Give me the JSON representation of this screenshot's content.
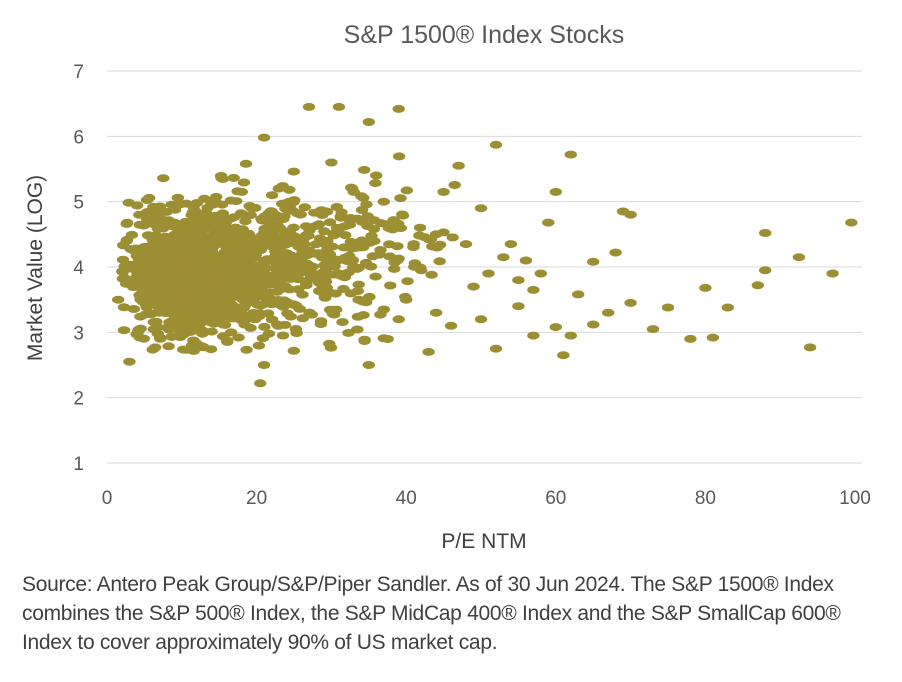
{
  "chart_data": {
    "type": "scatter",
    "title": "S&P 1500® Index Stocks",
    "xlabel": "P/E NTM",
    "ylabel": "Market Value (LOG)",
    "xlim": [
      0,
      100
    ],
    "ylim": [
      1,
      7
    ],
    "xticks": [
      "0",
      "20",
      "40",
      "60",
      "80",
      "100"
    ],
    "yticks": [
      "1",
      "2",
      "3",
      "4",
      "5",
      "6",
      "7"
    ],
    "xtick_values": [
      0,
      20,
      40,
      60,
      80,
      100
    ],
    "ytick_values": [
      1,
      2,
      3,
      4,
      5,
      6,
      7
    ],
    "grid": true,
    "marker_color": "#9C8E33",
    "gridline_color": "#D9D9D9",
    "outlier_points": [
      {
        "x": 27,
        "y": 6.45
      },
      {
        "x": 31,
        "y": 6.45
      },
      {
        "x": 39,
        "y": 6.42
      },
      {
        "x": 35,
        "y": 6.22
      },
      {
        "x": 21,
        "y": 5.98
      },
      {
        "x": 52,
        "y": 5.87
      },
      {
        "x": 62,
        "y": 5.72
      },
      {
        "x": 60,
        "y": 5.15
      },
      {
        "x": 69,
        "y": 4.85
      },
      {
        "x": 70,
        "y": 4.8
      },
      {
        "x": 59,
        "y": 4.68
      },
      {
        "x": 88,
        "y": 4.52
      },
      {
        "x": 99.5,
        "y": 4.68
      },
      {
        "x": 68,
        "y": 4.22
      },
      {
        "x": 65,
        "y": 4.08
      },
      {
        "x": 92.5,
        "y": 4.15
      },
      {
        "x": 88,
        "y": 3.95
      },
      {
        "x": 97,
        "y": 3.9
      },
      {
        "x": 80,
        "y": 3.68
      },
      {
        "x": 87,
        "y": 3.72
      },
      {
        "x": 63,
        "y": 3.58
      },
      {
        "x": 70,
        "y": 3.45
      },
      {
        "x": 75,
        "y": 3.38
      },
      {
        "x": 83,
        "y": 3.38
      },
      {
        "x": 67,
        "y": 3.3
      },
      {
        "x": 65,
        "y": 3.12
      },
      {
        "x": 73,
        "y": 3.05
      },
      {
        "x": 60,
        "y": 3.08
      },
      {
        "x": 78,
        "y": 2.9
      },
      {
        "x": 81,
        "y": 2.92
      },
      {
        "x": 94,
        "y": 2.77
      },
      {
        "x": 62,
        "y": 2.95
      },
      {
        "x": 61,
        "y": 2.65
      },
      {
        "x": 52,
        "y": 2.75
      },
      {
        "x": 43,
        "y": 2.7
      },
      {
        "x": 35,
        "y": 2.5
      },
      {
        "x": 21,
        "y": 2.5
      },
      {
        "x": 20.5,
        "y": 2.22
      },
      {
        "x": 3,
        "y": 2.55
      },
      {
        "x": 1.5,
        "y": 3.5
      },
      {
        "x": 56,
        "y": 4.1
      },
      {
        "x": 55,
        "y": 3.8
      },
      {
        "x": 57,
        "y": 3.65
      },
      {
        "x": 58,
        "y": 3.9
      },
      {
        "x": 53,
        "y": 4.15
      },
      {
        "x": 50,
        "y": 4.9
      },
      {
        "x": 47,
        "y": 5.55
      },
      {
        "x": 45,
        "y": 5.15
      },
      {
        "x": 48,
        "y": 4.35
      },
      {
        "x": 54,
        "y": 4.35
      },
      {
        "x": 49,
        "y": 3.7
      },
      {
        "x": 51,
        "y": 3.9
      },
      {
        "x": 55,
        "y": 3.4
      },
      {
        "x": 57,
        "y": 2.95
      },
      {
        "x": 50,
        "y": 3.2
      },
      {
        "x": 46,
        "y": 3.1
      },
      {
        "x": 44,
        "y": 3.3
      },
      {
        "x": 42,
        "y": 3.95
      },
      {
        "x": 41,
        "y": 4.35
      },
      {
        "x": 44,
        "y": 4.5
      },
      {
        "x": 33,
        "y": 5.15
      },
      {
        "x": 36,
        "y": 5.4
      },
      {
        "x": 30,
        "y": 5.6
      },
      {
        "x": 37,
        "y": 5.0
      },
      {
        "x": 38,
        "y": 4.6
      },
      {
        "x": 40,
        "y": 3.5
      },
      {
        "x": 39,
        "y": 3.2
      },
      {
        "x": 37,
        "y": 3.35
      }
    ],
    "dense_cluster": {
      "count": 1500,
      "seed": 1500,
      "components": [
        {
          "weight": 0.55,
          "x_mean": 11,
          "x_sd": 4.5,
          "y_mean": 3.85,
          "y_sd": 0.5
        },
        {
          "weight": 0.3,
          "x_mean": 18,
          "x_sd": 6.0,
          "y_mean": 4.1,
          "y_sd": 0.55
        },
        {
          "weight": 0.15,
          "x_mean": 30,
          "x_sd": 7.0,
          "y_mean": 4.1,
          "y_sd": 0.55
        }
      ],
      "x_range": [
        2,
        47
      ],
      "y_range": [
        2.7,
        5.8
      ]
    }
  },
  "caption": "Source: Antero Peak Group/S&P/Piper Sandler. As of 30 Jun 2024. The S&P 1500® Index combines the S&P 500® Index, the S&P MidCap 400® Index and the S&P SmallCap 600® Index to cover approximately 90% of US market cap."
}
